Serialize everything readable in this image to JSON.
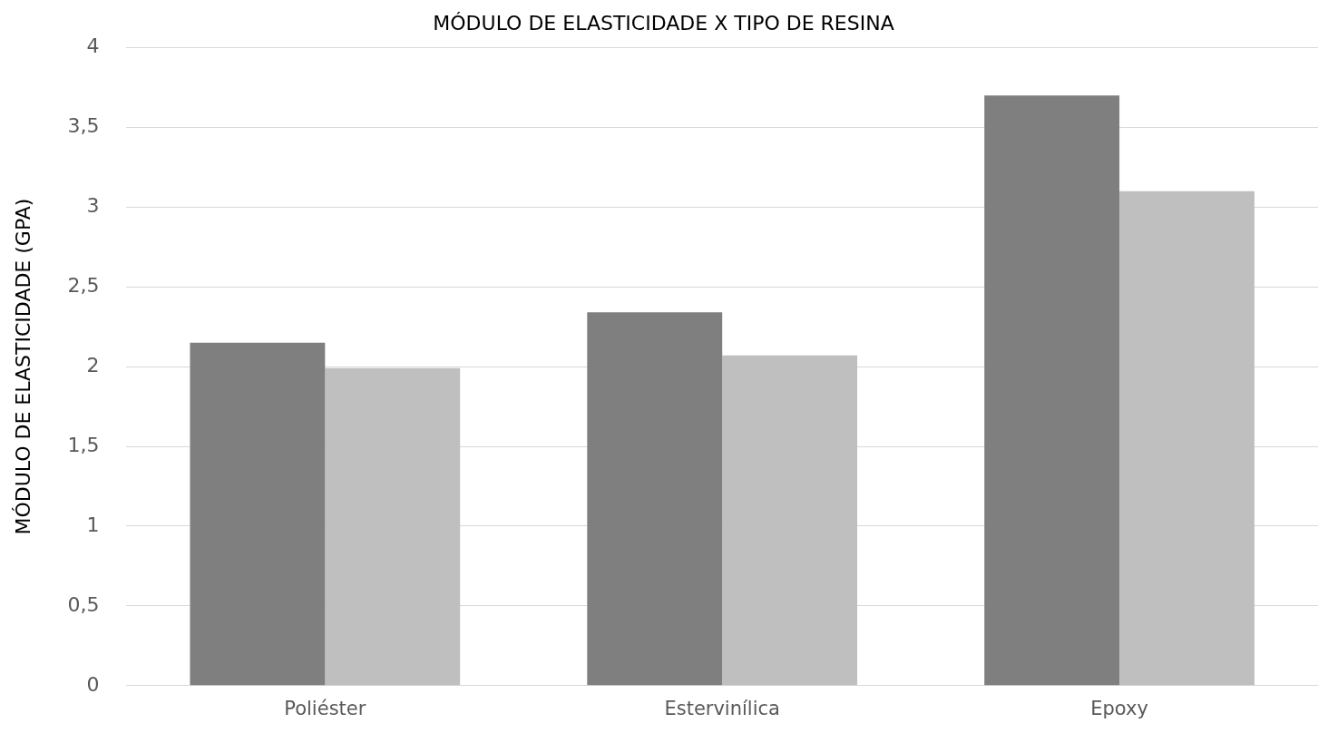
{
  "chart_data": {
    "type": "bar",
    "title": "MÓDULO DE ELASTICIDADE X TIPO DE RESINA",
    "ylabel": "MÓDULO DE ELASTICIDADE (GPA)",
    "categories": [
      "Poliéster",
      "Estervinílica",
      "Epoxy"
    ],
    "series": [
      {
        "color": "#7f7f7f",
        "values": [
          2.15,
          2.34,
          3.7
        ]
      },
      {
        "color": "#bfbfbf",
        "values": [
          1.99,
          2.07,
          3.1
        ]
      }
    ],
    "ylim": [
      0,
      4
    ],
    "yticks": [
      0,
      {
        "value": 0.5,
        "label": "0,5"
      },
      1,
      {
        "value": 1.5,
        "label": "1,5"
      },
      2,
      {
        "value": 2.5,
        "label": "2,5"
      },
      3,
      {
        "value": 3.5,
        "label": "3,5"
      },
      4
    ],
    "grid": "y",
    "legend": false
  }
}
